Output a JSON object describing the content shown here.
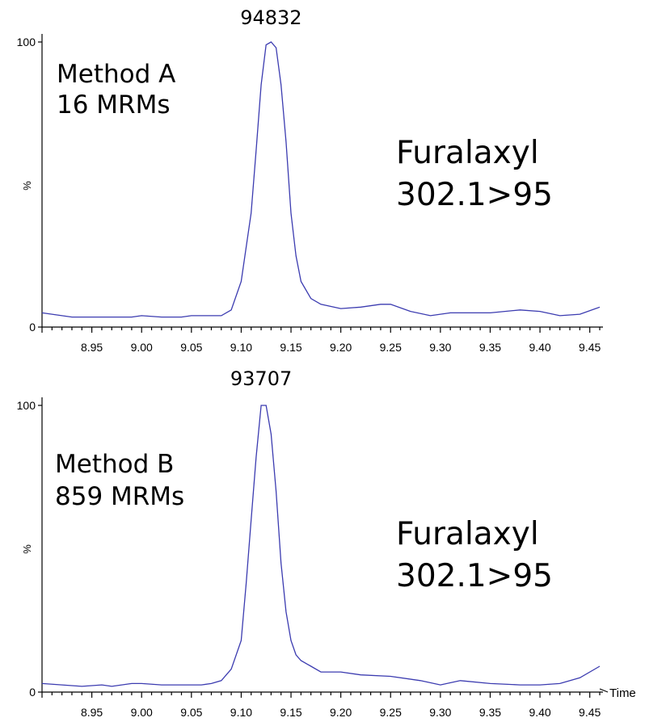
{
  "chart_data": [
    {
      "type": "line",
      "peak_label": "94832",
      "method_lines": [
        "Method A",
        "16 MRMs"
      ],
      "compound_lines": [
        "Furalaxyl",
        "302.1>95"
      ],
      "ylabel": "%",
      "xlabel": "",
      "y_ticks": [
        "0",
        "100"
      ],
      "ylim": [
        0,
        100
      ],
      "xlim": [
        8.9,
        9.46
      ],
      "x_ticks": [
        "8.95",
        "9.00",
        "9.05",
        "9.10",
        "9.15",
        "9.20",
        "9.25",
        "9.30",
        "9.35",
        "9.40",
        "9.45"
      ],
      "series": [
        {
          "color": "#3b3bb0",
          "x": [
            8.9,
            8.93,
            8.96,
            8.99,
            9.0,
            9.02,
            9.04,
            9.05,
            9.07,
            9.08,
            9.09,
            9.1,
            9.11,
            9.115,
            9.12,
            9.125,
            9.13,
            9.135,
            9.14,
            9.145,
            9.15,
            9.155,
            9.16,
            9.17,
            9.18,
            9.2,
            9.22,
            9.24,
            9.25,
            9.27,
            9.29,
            9.31,
            9.35,
            9.38,
            9.4,
            9.42,
            9.44,
            9.46
          ],
          "y": [
            5,
            3.5,
            3.5,
            3.5,
            4,
            3.5,
            3.5,
            4,
            4,
            4,
            6,
            16,
            40,
            62,
            85,
            99,
            100,
            98,
            85,
            65,
            40,
            25,
            16,
            10,
            8,
            6.5,
            7,
            8,
            8,
            5.5,
            4,
            5,
            5,
            6,
            5.5,
            4,
            4.5,
            7
          ]
        }
      ]
    },
    {
      "type": "line",
      "peak_label": "93707",
      "method_lines": [
        "Method B",
        "859 MRMs"
      ],
      "compound_lines": [
        "Furalaxyl",
        "302.1>95"
      ],
      "ylabel": "%",
      "xlabel": "Time",
      "y_ticks": [
        "0",
        "100"
      ],
      "ylim": [
        0,
        100
      ],
      "xlim": [
        8.9,
        9.46
      ],
      "x_ticks": [
        "8.95",
        "9.00",
        "9.05",
        "9.10",
        "9.15",
        "9.20",
        "9.25",
        "9.30",
        "9.35",
        "9.40",
        "9.45"
      ],
      "series": [
        {
          "color": "#3b3bb0",
          "x": [
            8.9,
            8.92,
            8.94,
            8.96,
            8.97,
            8.99,
            9.0,
            9.02,
            9.04,
            9.06,
            9.07,
            9.08,
            9.09,
            9.1,
            9.105,
            9.11,
            9.115,
            9.12,
            9.125,
            9.13,
            9.135,
            9.14,
            9.145,
            9.15,
            9.155,
            9.16,
            9.17,
            9.18,
            9.2,
            9.22,
            9.25,
            9.28,
            9.3,
            9.32,
            9.35,
            9.38,
            9.4,
            9.42,
            9.44,
            9.46
          ],
          "y": [
            3,
            2.5,
            2,
            2.5,
            2,
            3,
            3,
            2.5,
            2.5,
            2.5,
            3,
            4,
            8,
            18,
            38,
            60,
            82,
            100,
            100,
            90,
            70,
            45,
            28,
            18,
            13,
            11,
            9,
            7,
            7,
            6,
            5.5,
            4,
            2.5,
            4,
            3,
            2.5,
            2.5,
            3,
            5,
            9
          ]
        }
      ]
    }
  ]
}
